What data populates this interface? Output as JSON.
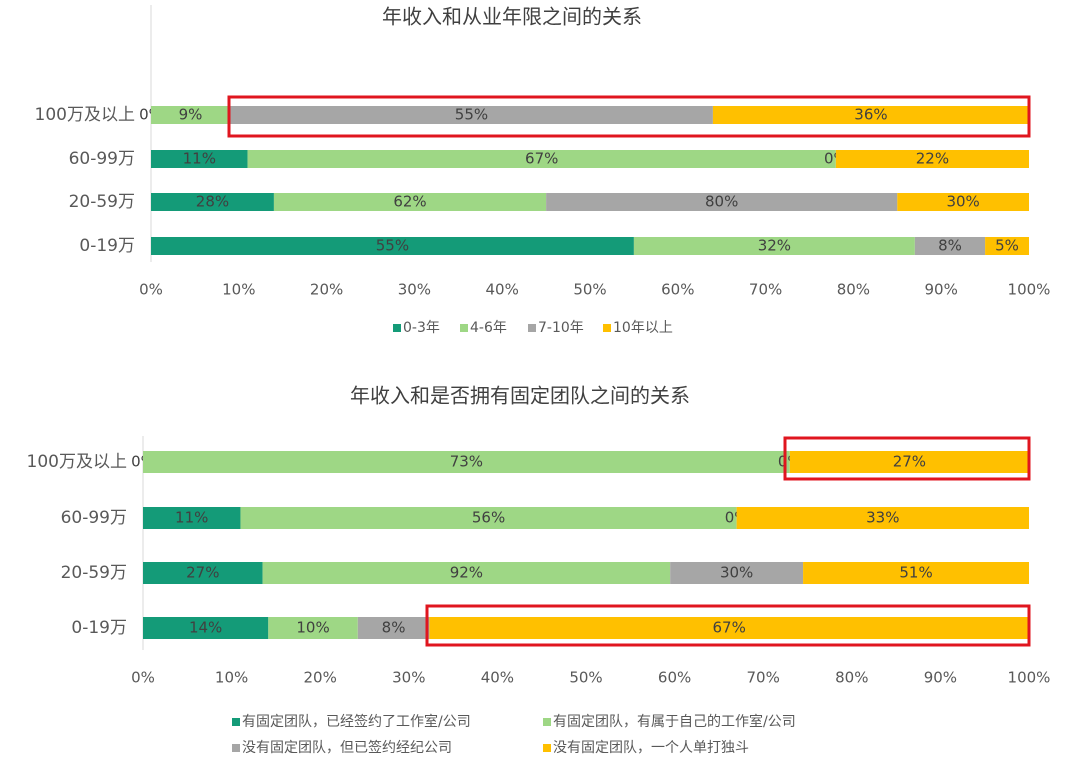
{
  "chart_data": [
    {
      "type": "bar",
      "orientation": "horizontal",
      "stack": "percent",
      "title": "年收入和从业年限之间的关系",
      "categories": [
        "100万及以上",
        "60-99万",
        "20-59万",
        "0-19万"
      ],
      "series": [
        {
          "name": "0-3年",
          "color": "#149b78",
          "values": [
            0,
            11,
            28,
            55
          ],
          "value_labels": [
            "0%",
            "11%",
            "28%",
            "55%"
          ]
        },
        {
          "name": "4-6年",
          "color": "#9ed785",
          "values": [
            9,
            67,
            62,
            32
          ],
          "value_labels": [
            "9%",
            "67%",
            "62%",
            "32%"
          ]
        },
        {
          "name": "7-10年",
          "color": "#a6a6a6",
          "values": [
            55,
            0,
            80,
            8
          ],
          "value_labels": [
            "55%",
            "0%",
            "80%",
            "8%"
          ]
        },
        {
          "name": "10年以上",
          "color": "#ffc000",
          "values": [
            36,
            22,
            30,
            5
          ],
          "value_labels": [
            "36%",
            "22%",
            "30%",
            "5%"
          ]
        }
      ],
      "xlim": [
        0,
        100
      ],
      "xticks": [
        {
          "value": 0,
          "label": "0%"
        },
        {
          "value": 10,
          "label": "10%"
        },
        {
          "value": 20,
          "label": "20%"
        },
        {
          "value": 30,
          "label": "30%"
        },
        {
          "value": 40,
          "label": "40%"
        },
        {
          "value": 50,
          "label": "50%"
        },
        {
          "value": 60,
          "label": "60%"
        },
        {
          "value": 70,
          "label": "70%"
        },
        {
          "value": 80,
          "label": "80%"
        },
        {
          "value": 90,
          "label": "90%"
        },
        {
          "value": 100,
          "label": "100%"
        }
      ],
      "legend": "bottom"
    },
    {
      "type": "bar",
      "orientation": "horizontal",
      "stack": "percent",
      "title": "年收入和是否拥有固定团队之间的关系",
      "categories": [
        "100万及以上",
        "60-99万",
        "20-59万",
        "0-19万"
      ],
      "series": [
        {
          "name": "有固定团队，已经签约了工作室/公司",
          "color": "#149b78",
          "values": [
            0,
            11,
            27,
            14
          ],
          "value_labels": [
            "0%",
            "11%",
            "27%",
            "14%"
          ]
        },
        {
          "name": "有固定团队，有属于自己的工作室/公司",
          "color": "#9ed785",
          "values": [
            73,
            56,
            92,
            10
          ],
          "value_labels": [
            "73%",
            "56%",
            "92%",
            "10%"
          ]
        },
        {
          "name": "没有固定团队，但已签约经纪公司",
          "color": "#a6a6a6",
          "values": [
            0,
            0,
            30,
            8
          ],
          "value_labels": [
            "0%",
            "0%",
            "30%",
            "8%"
          ]
        },
        {
          "name": "没有固定团队，一个人单打独斗",
          "color": "#ffc000",
          "values": [
            27,
            33,
            51,
            67
          ],
          "value_labels": [
            "27%",
            "33%",
            "51%",
            "67%"
          ]
        }
      ],
      "xlim": [
        0,
        100
      ],
      "xticks": [
        {
          "value": 0,
          "label": "0%"
        },
        {
          "value": 10,
          "label": "10%"
        },
        {
          "value": 20,
          "label": "20%"
        },
        {
          "value": 30,
          "label": "30%"
        },
        {
          "value": 40,
          "label": "40%"
        },
        {
          "value": 50,
          "label": "50%"
        },
        {
          "value": 60,
          "label": "60%"
        },
        {
          "value": 70,
          "label": "70%"
        },
        {
          "value": 80,
          "label": "80%"
        },
        {
          "value": 90,
          "label": "90%"
        },
        {
          "value": 100,
          "label": "100%"
        }
      ],
      "legend": "bottom"
    }
  ]
}
